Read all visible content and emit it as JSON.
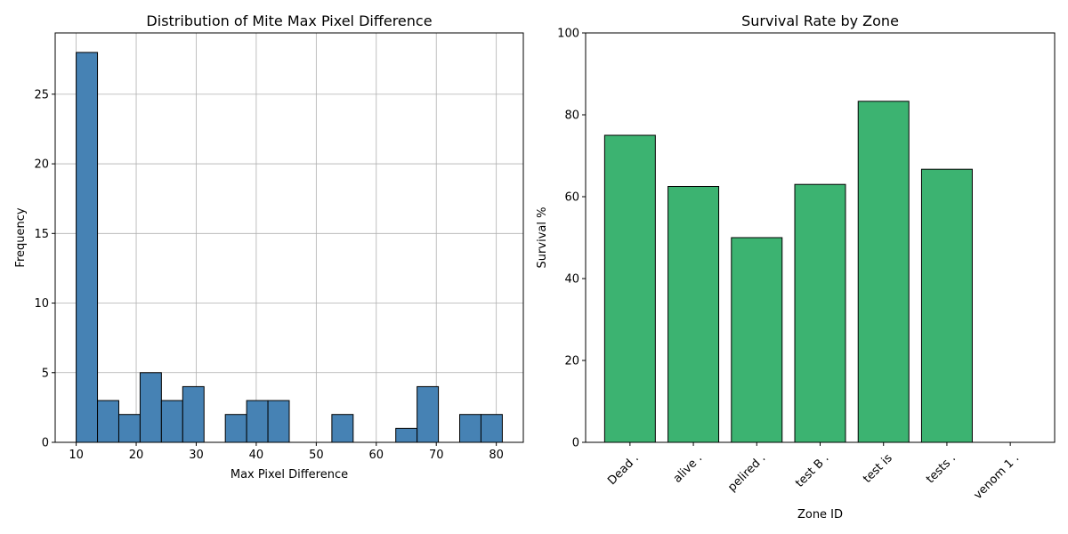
{
  "chart_data": [
    {
      "type": "bar",
      "title": "Distribution of Mite Max Pixel Difference",
      "xlabel": "Max Pixel Difference",
      "ylabel": "Frequency",
      "xlim": [
        6.5,
        84.5
      ],
      "ylim": [
        0,
        29.4
      ],
      "xticks": [
        "10",
        "20",
        "30",
        "40",
        "50",
        "60",
        "70",
        "80"
      ],
      "xtick_values": [
        10,
        20,
        30,
        40,
        50,
        60,
        70,
        80
      ],
      "yticks": [
        "0",
        "5",
        "10",
        "15",
        "20",
        "25"
      ],
      "ytick_values": [
        0,
        5,
        10,
        15,
        20,
        25
      ],
      "grid": true,
      "bar_color": "#4682b4",
      "edge_color": "#000000",
      "bin_edges": [
        10,
        13.55,
        17.1,
        20.65,
        24.2,
        27.75,
        31.3,
        34.85,
        38.4,
        41.95,
        45.5,
        49.05,
        52.6,
        56.15,
        59.7,
        63.25,
        66.8,
        70.35,
        73.9,
        77.45,
        81
      ],
      "values": [
        28,
        3,
        2,
        5,
        3,
        4,
        0,
        2,
        3,
        3,
        0,
        0,
        2,
        0,
        0,
        1,
        4,
        0,
        2,
        2
      ]
    },
    {
      "type": "bar",
      "title": "Survival Rate by Zone",
      "xlabel": "Zone ID",
      "ylabel": "Survival %",
      "ylim": [
        0,
        100
      ],
      "yticks": [
        "0",
        "20",
        "40",
        "60",
        "80",
        "100"
      ],
      "ytick_values": [
        0,
        20,
        40,
        60,
        80,
        100
      ],
      "grid": false,
      "bar_color": "#3cb371",
      "edge_color": "#000000",
      "categories": [
        "Dead .",
        "alive .",
        "pelired .",
        "test B .",
        "test is",
        "tests .",
        "venom 1 ."
      ],
      "values": [
        75,
        62.5,
        50,
        63,
        83.3,
        66.7,
        0
      ]
    }
  ]
}
